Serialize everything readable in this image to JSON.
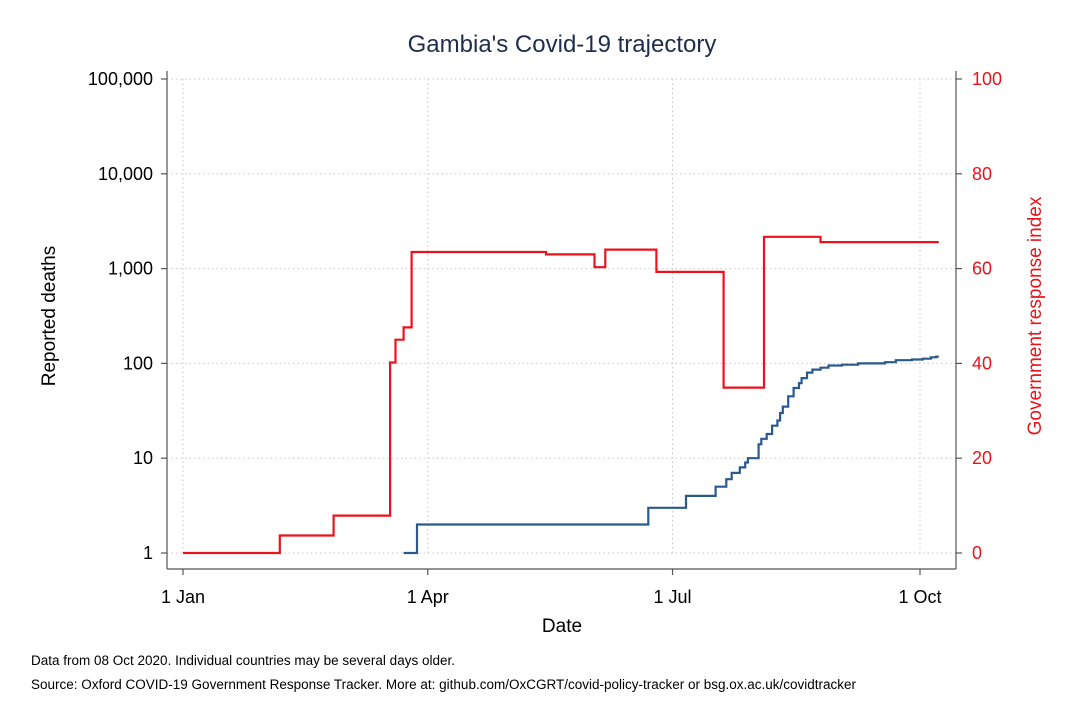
{
  "chart_data": {
    "type": "line",
    "title": "Gambia's Covid-19 trajectory",
    "xlabel": "Date",
    "ylabel": "Reported deaths",
    "y2label": "Government response index",
    "x_ticks": [
      {
        "date": "2020-01-01",
        "label": "1 Jan"
      },
      {
        "date": "2020-04-01",
        "label": "1 Apr"
      },
      {
        "date": "2020-07-01",
        "label": "1 Jul"
      },
      {
        "date": "2020-10-01",
        "label": "1 Oct"
      }
    ],
    "xlim": [
      "2020-01-01",
      "2020-10-08"
    ],
    "y_scale": "log",
    "ylim": [
      1,
      100000
    ],
    "y_ticks": [
      {
        "value": 1,
        "label": "1"
      },
      {
        "value": 10,
        "label": "10"
      },
      {
        "value": 100,
        "label": "100"
      },
      {
        "value": 1000,
        "label": "1,000"
      },
      {
        "value": 10000,
        "label": "10,000"
      },
      {
        "value": 100000,
        "label": "100,000"
      }
    ],
    "y2lim": [
      0,
      100
    ],
    "y2_ticks": [
      {
        "value": 0,
        "label": "0"
      },
      {
        "value": 20,
        "label": "20"
      },
      {
        "value": 40,
        "label": "40"
      },
      {
        "value": 60,
        "label": "60"
      },
      {
        "value": 80,
        "label": "80"
      },
      {
        "value": 100,
        "label": "100"
      }
    ],
    "grid": true,
    "series": [
      {
        "axis": "left",
        "color": "#2a5a8c",
        "step": true,
        "points": [
          [
            "2020-03-23",
            1
          ],
          [
            "2020-03-28",
            2
          ],
          [
            "2020-06-22",
            3
          ],
          [
            "2020-07-06",
            4
          ],
          [
            "2020-07-17",
            5
          ],
          [
            "2020-07-21",
            6
          ],
          [
            "2020-07-23",
            7
          ],
          [
            "2020-07-26",
            8
          ],
          [
            "2020-07-28",
            9
          ],
          [
            "2020-07-29",
            10
          ],
          [
            "2020-08-02",
            14
          ],
          [
            "2020-08-03",
            16
          ],
          [
            "2020-08-05",
            18
          ],
          [
            "2020-08-07",
            22
          ],
          [
            "2020-08-09",
            25
          ],
          [
            "2020-08-10",
            30
          ],
          [
            "2020-08-11",
            35
          ],
          [
            "2020-08-13",
            45
          ],
          [
            "2020-08-15",
            55
          ],
          [
            "2020-08-17",
            62
          ],
          [
            "2020-08-18",
            70
          ],
          [
            "2020-08-20",
            80
          ],
          [
            "2020-08-22",
            86
          ],
          [
            "2020-08-25",
            90
          ],
          [
            "2020-08-28",
            95
          ],
          [
            "2020-09-02",
            97
          ],
          [
            "2020-09-08",
            100
          ],
          [
            "2020-09-18",
            103
          ],
          [
            "2020-09-22",
            108
          ],
          [
            "2020-09-28",
            110
          ],
          [
            "2020-10-02",
            112
          ],
          [
            "2020-10-05",
            116
          ],
          [
            "2020-10-07",
            118
          ],
          [
            "2020-10-08",
            118
          ]
        ]
      },
      {
        "axis": "right",
        "color": "#e8141b",
        "step": true,
        "points": [
          [
            "2020-01-01",
            0
          ],
          [
            "2020-02-06",
            3.7
          ],
          [
            "2020-02-26",
            7.9
          ],
          [
            "2020-03-18",
            40.2
          ],
          [
            "2020-03-19",
            40.2
          ],
          [
            "2020-03-20",
            45.0
          ],
          [
            "2020-03-23",
            47.6
          ],
          [
            "2020-03-26",
            63.5
          ],
          [
            "2020-05-15",
            63.0
          ],
          [
            "2020-06-02",
            60.3
          ],
          [
            "2020-06-06",
            64.0
          ],
          [
            "2020-06-25",
            59.3
          ],
          [
            "2020-07-20",
            34.9
          ],
          [
            "2020-08-04",
            66.7
          ],
          [
            "2020-08-25",
            65.6
          ],
          [
            "2020-10-08",
            65.6
          ]
        ]
      }
    ]
  },
  "footnotes": {
    "line1": "Data from 08 Oct 2020. Individual countries may be several days older.",
    "line2": "Source: Oxford COVID-19 Government Response Tracker. More at: github.com/OxCGRT/covid-policy-tracker or bsg.ox.ac.uk/covidtracker"
  }
}
